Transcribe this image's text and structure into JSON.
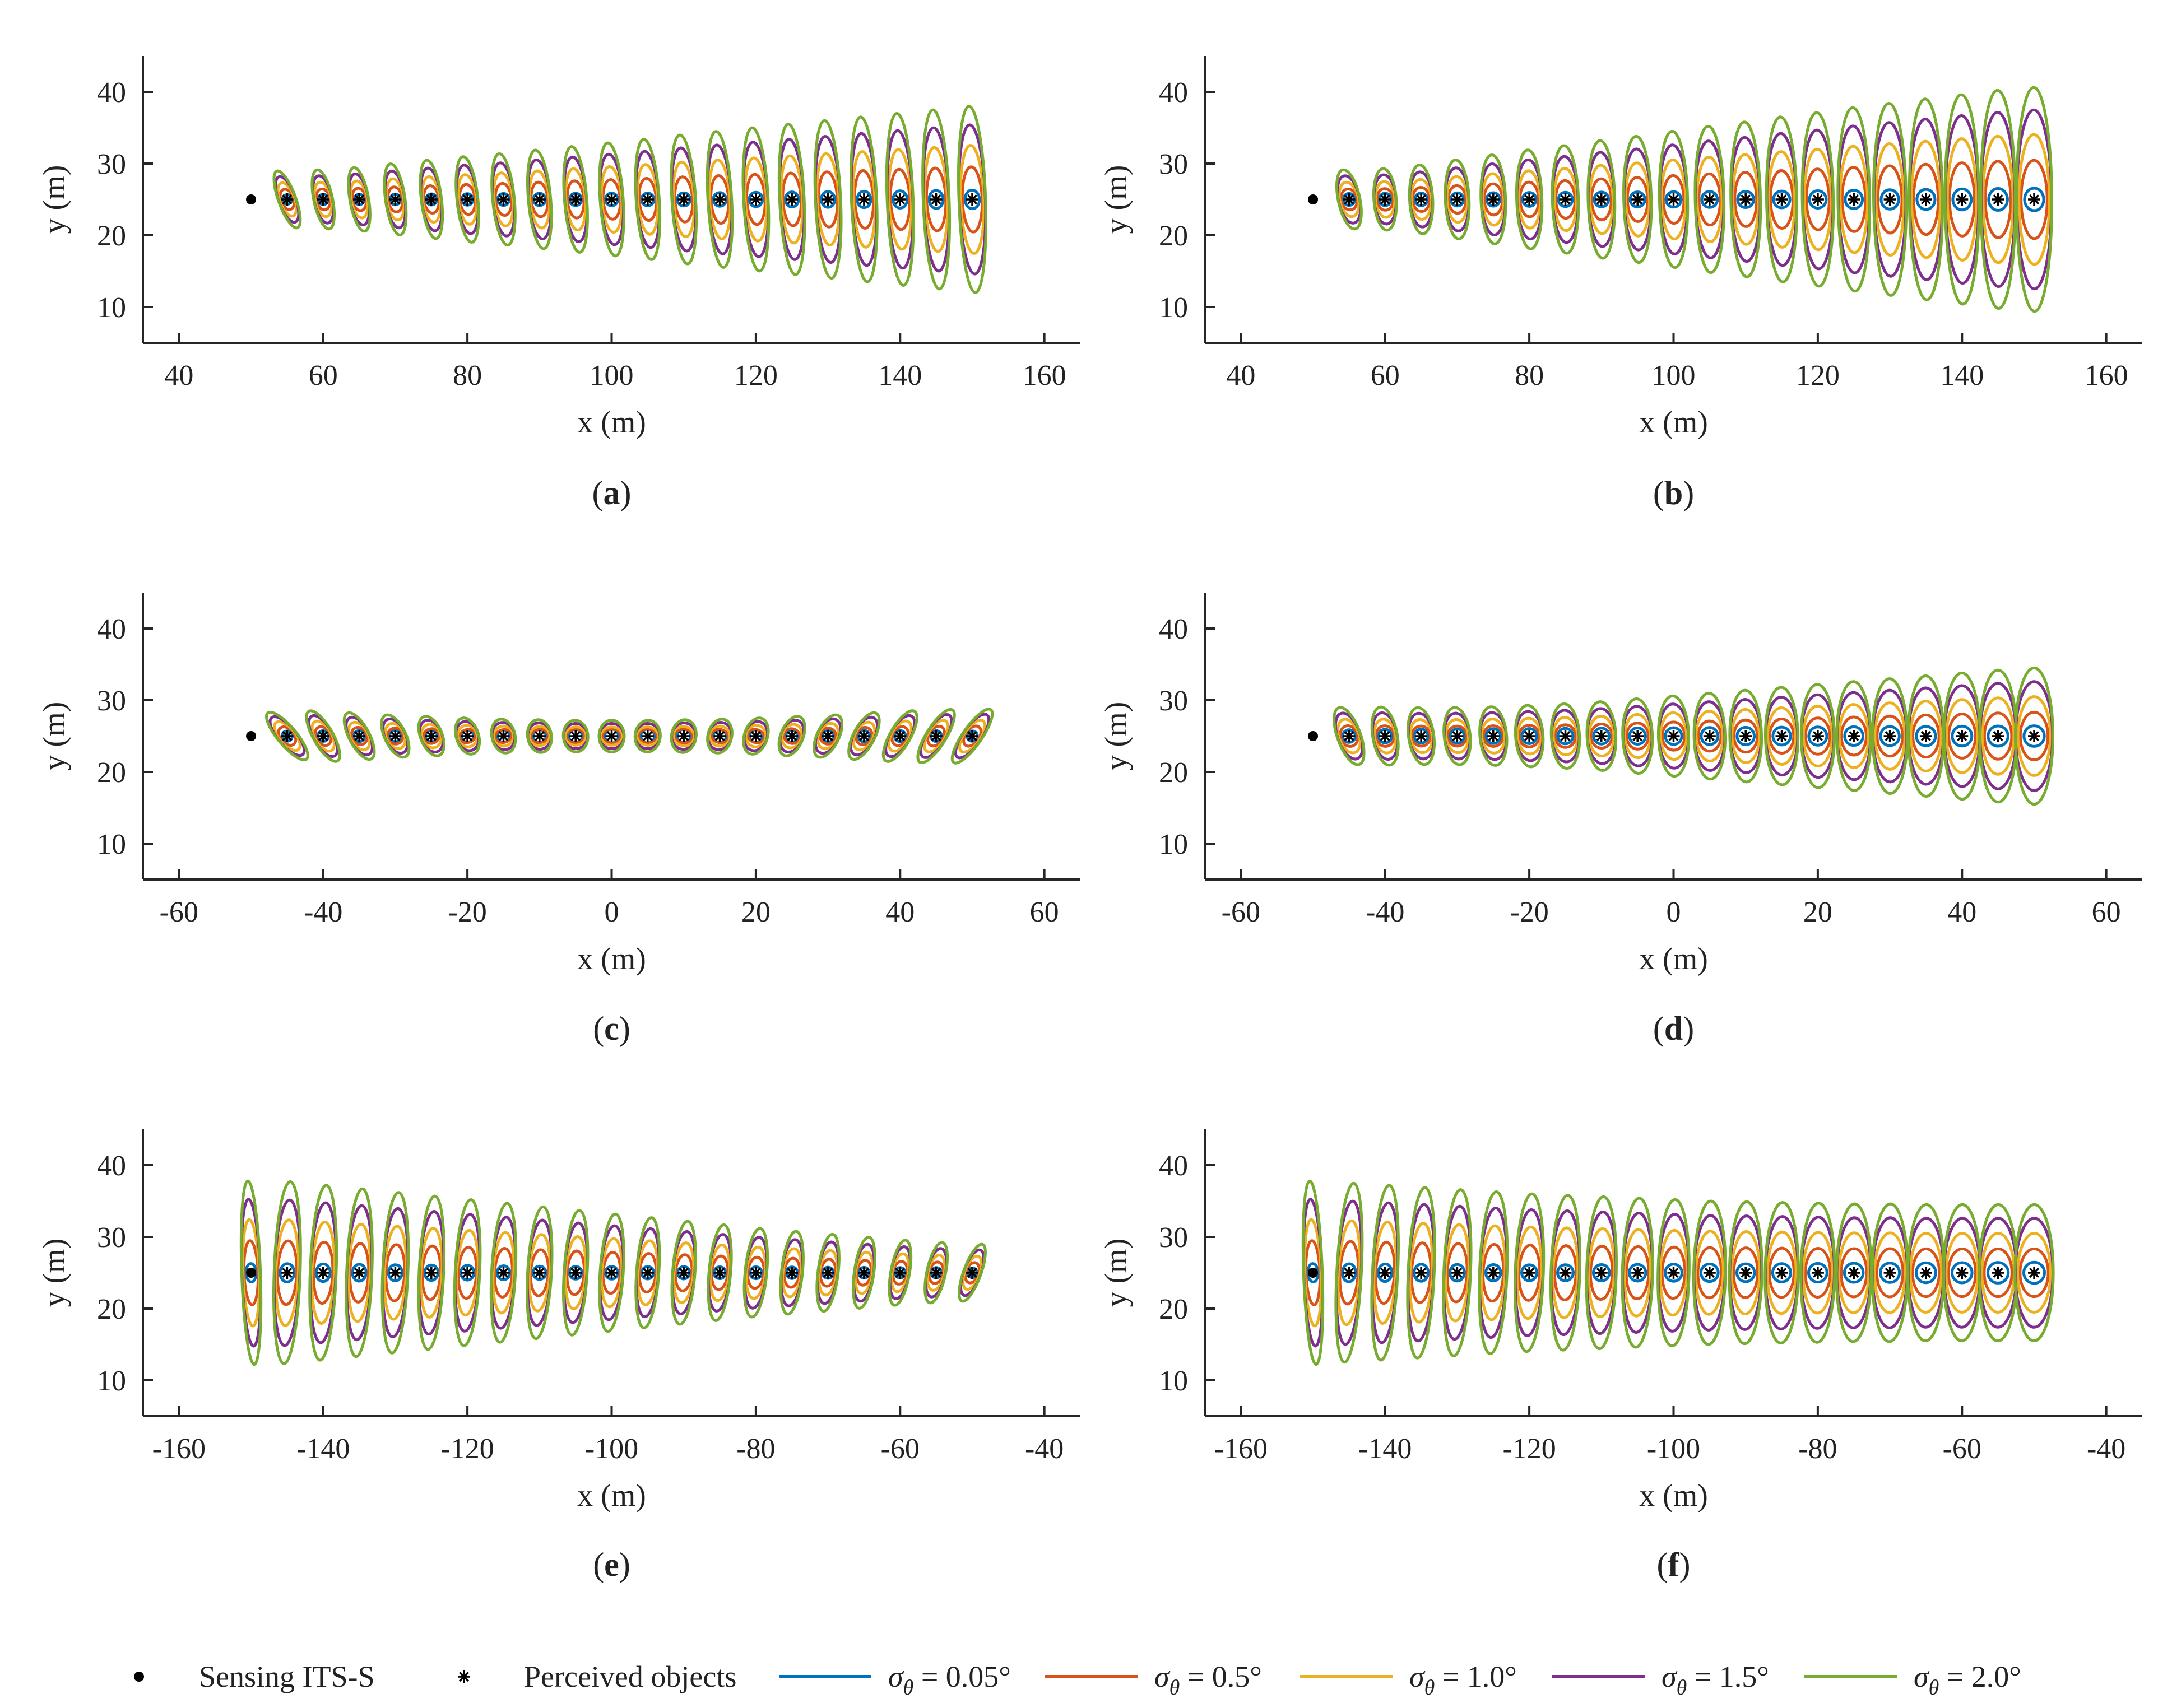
{
  "colors": {
    "sigma_0_05": "#0072BD",
    "sigma_0_5": "#D95319",
    "sigma_1_0": "#EDB120",
    "sigma_1_5": "#7E2F8E",
    "sigma_2_0": "#77AC30",
    "axis": "#262626",
    "marker": "#000000"
  },
  "legend": {
    "entries": [
      {
        "label": "Sensing ITS-S",
        "kind": "dot"
      },
      {
        "label": "Perceived objects",
        "kind": "star"
      },
      {
        "label": "σθ = 0.05°",
        "kind": "line",
        "color": "#0072BD"
      },
      {
        "label": "σθ = 0.5°",
        "kind": "line",
        "color": "#D95319"
      },
      {
        "label": "σθ = 1.0°",
        "kind": "line",
        "color": "#EDB120"
      },
      {
        "label": "σθ = 1.5°",
        "kind": "line",
        "color": "#7E2F8E"
      },
      {
        "label": "σθ = 2.0°",
        "kind": "line",
        "color": "#77AC30"
      }
    ]
  },
  "chart_data": [
    {
      "panel": "a",
      "caption_letter": "a",
      "type": "scatter",
      "xlabel": "x (m)",
      "ylabel": "y (m)",
      "xlim": [
        35,
        165
      ],
      "ylim": [
        5,
        45
      ],
      "xticks": [
        40,
        60,
        80,
        100,
        120,
        140,
        160
      ],
      "yticks": [
        10,
        20,
        30,
        40
      ],
      "sensor": [
        50,
        25
      ],
      "objects_x": [
        55,
        60,
        65,
        70,
        75,
        80,
        85,
        90,
        95,
        100,
        105,
        110,
        115,
        120,
        125,
        130,
        135,
        140,
        145,
        150
      ],
      "object_y": 25,
      "sigma_deg": [
        0.05,
        0.5,
        1.0,
        1.5,
        2.0
      ],
      "ellipse_semi_axes_sigma2_m": {
        "major": [
          4.2,
          4.2,
          4.5,
          5.0,
          5.5,
          6.0,
          6.4,
          6.9,
          7.4,
          7.9,
          8.4,
          9.0,
          9.5,
          10.0,
          10.5,
          11.0,
          11.5,
          12.0,
          12.5,
          13.0
        ],
        "minor": [
          1.2,
          1.3,
          1.3,
          1.35,
          1.4,
          1.45,
          1.5,
          1.55,
          1.55,
          1.6,
          1.6,
          1.65,
          1.65,
          1.7,
          1.7,
          1.75,
          1.75,
          1.8,
          1.8,
          1.85
        ],
        "tilt_deg": [
          -20,
          -12,
          -10,
          -8,
          -7,
          -6,
          -5.5,
          -5,
          -4.5,
          -4,
          -3.8,
          -3.5,
          -3.2,
          -3,
          -2.8,
          -2.6,
          -2.4,
          -2.2,
          -2.1,
          -2
        ]
      }
    },
    {
      "panel": "b",
      "caption_letter": "b",
      "type": "scatter",
      "xlabel": "x (m)",
      "ylabel": "y (m)",
      "xlim": [
        35,
        165
      ],
      "ylim": [
        5,
        45
      ],
      "xticks": [
        40,
        60,
        80,
        100,
        120,
        140,
        160
      ],
      "yticks": [
        10,
        20,
        30,
        40
      ],
      "sensor": [
        50,
        25
      ],
      "objects_x": [
        55,
        60,
        65,
        70,
        75,
        80,
        85,
        90,
        95,
        100,
        105,
        110,
        115,
        120,
        125,
        130,
        135,
        140,
        145,
        150
      ],
      "object_y": 25,
      "sigma_deg": [
        0.05,
        0.5,
        1.0,
        1.5,
        2.0
      ],
      "ellipse_semi_axes_sigma2_m": {
        "major": [
          4.2,
          4.3,
          4.8,
          5.5,
          6.2,
          6.9,
          7.5,
          8.2,
          8.8,
          9.5,
          10.2,
          10.8,
          11.5,
          12.1,
          12.8,
          13.4,
          14.0,
          14.6,
          15.2,
          15.6
        ],
        "minor": [
          1.5,
          1.55,
          1.6,
          1.65,
          1.7,
          1.75,
          1.8,
          1.85,
          1.9,
          1.95,
          2.0,
          2.05,
          2.1,
          2.15,
          2.2,
          2.25,
          2.3,
          2.35,
          2.4,
          2.45
        ],
        "tilt_deg": [
          -12,
          -4,
          -3,
          -2.5,
          -2,
          -1.8,
          -1.6,
          -1.4,
          -1.3,
          -1.2,
          -1.1,
          -1,
          -0.9,
          -0.8,
          -0.7,
          -0.6,
          -0.5,
          -0.4,
          -0.3,
          -0.2
        ]
      }
    },
    {
      "panel": "c",
      "caption_letter": "c",
      "type": "scatter",
      "xlabel": "x (m)",
      "ylabel": "y (m)",
      "xlim": [
        -65,
        65
      ],
      "ylim": [
        5,
        45
      ],
      "xticks": [
        -60,
        -40,
        -20,
        0,
        20,
        40,
        60
      ],
      "yticks": [
        10,
        20,
        30,
        40
      ],
      "sensor": [
        -50,
        25
      ],
      "objects_x": [
        -45,
        -40,
        -35,
        -30,
        -25,
        -20,
        -15,
        -10,
        -5,
        0,
        5,
        10,
        15,
        20,
        25,
        30,
        35,
        40,
        45,
        50
      ],
      "object_y": 25,
      "sigma_deg": [
        0.05,
        0.5,
        1.0,
        1.5,
        2.0
      ],
      "ellipse_semi_axes_sigma2_m": {
        "major": [
          4.2,
          4.0,
          3.6,
          3.2,
          2.9,
          2.6,
          2.4,
          2.3,
          2.2,
          2.2,
          2.2,
          2.3,
          2.4,
          2.6,
          2.9,
          3.2,
          3.6,
          4.0,
          4.3,
          4.5
        ],
        "minor": [
          1.3,
          1.35,
          1.4,
          1.45,
          1.5,
          1.55,
          1.6,
          1.65,
          1.7,
          1.75,
          1.75,
          1.7,
          1.65,
          1.6,
          1.55,
          1.5,
          1.45,
          1.4,
          1.35,
          1.3
        ],
        "tilt_deg": [
          -40,
          -30,
          -28,
          -26,
          -22,
          -18,
          -14,
          -10,
          -5,
          0,
          5,
          10,
          14,
          18,
          22,
          26,
          28,
          30,
          32,
          35
        ]
      }
    },
    {
      "panel": "d",
      "caption_letter": "d",
      "type": "scatter",
      "xlabel": "x (m)",
      "ylabel": "y (m)",
      "xlim": [
        -65,
        65
      ],
      "ylim": [
        5,
        45
      ],
      "xticks": [
        -60,
        -40,
        -20,
        0,
        20,
        40,
        60
      ],
      "yticks": [
        10,
        20,
        30,
        40
      ],
      "sensor": [
        -50,
        25
      ],
      "objects_x": [
        -45,
        -40,
        -35,
        -30,
        -25,
        -20,
        -15,
        -10,
        -5,
        0,
        5,
        10,
        15,
        20,
        25,
        30,
        35,
        40,
        45,
        50
      ],
      "object_y": 25,
      "sigma_deg": [
        0.05,
        0.5,
        1.0,
        1.5,
        2.0
      ],
      "ellipse_semi_axes_sigma2_m": {
        "major": [
          4.2,
          4.1,
          4.0,
          4.0,
          4.1,
          4.3,
          4.5,
          4.8,
          5.2,
          5.6,
          6.0,
          6.4,
          6.8,
          7.2,
          7.6,
          8.0,
          8.4,
          8.8,
          9.2,
          9.5
        ],
        "minor": [
          1.6,
          1.7,
          1.75,
          1.8,
          1.85,
          1.9,
          1.95,
          2.0,
          2.05,
          2.1,
          2.15,
          2.2,
          2.25,
          2.3,
          2.35,
          2.4,
          2.45,
          2.5,
          2.55,
          2.6
        ],
        "tilt_deg": [
          -20,
          -10,
          -8,
          -6,
          -5,
          -4,
          -3,
          -2.5,
          -2,
          -1.5,
          -1.2,
          -1,
          -0.8,
          -0.6,
          -0.5,
          -0.4,
          -0.3,
          -0.2,
          -0.1,
          0
        ]
      }
    },
    {
      "panel": "e",
      "caption_letter": "e",
      "type": "scatter",
      "xlabel": "x (m)",
      "ylabel": "y (m)",
      "xlim": [
        -165,
        -35
      ],
      "ylim": [
        5,
        45
      ],
      "xticks": [
        -160,
        -140,
        -120,
        -100,
        -80,
        -60,
        -40
      ],
      "yticks": [
        10,
        20,
        30,
        40
      ],
      "sensor": [
        -150,
        25
      ],
      "objects_x": [
        -145,
        -140,
        -135,
        -130,
        -125,
        -120,
        -115,
        -110,
        -105,
        -100,
        -95,
        -90,
        -85,
        -80,
        -75,
        -70,
        -65,
        -60,
        -55,
        -50
      ],
      "object_y": 25,
      "sigma_deg": [
        0.05,
        0.5,
        1.0,
        1.5,
        2.0
      ],
      "ellipse_semi_axes_sigma2_m": {
        "major": [
          12.7,
          12.2,
          11.7,
          11.2,
          10.7,
          10.2,
          9.7,
          9.2,
          8.7,
          8.2,
          7.7,
          7.2,
          6.7,
          6.2,
          5.8,
          5.4,
          5.0,
          4.6,
          4.3,
          4.2
        ],
        "minor": [
          1.8,
          1.8,
          1.75,
          1.75,
          1.7,
          1.7,
          1.65,
          1.65,
          1.6,
          1.6,
          1.55,
          1.55,
          1.5,
          1.5,
          1.45,
          1.4,
          1.35,
          1.3,
          1.3,
          1.2
        ],
        "tilt_deg": [
          2,
          2.1,
          2.2,
          2.4,
          2.6,
          2.8,
          3,
          3.2,
          3.5,
          3.8,
          4,
          4.5,
          5,
          5.5,
          6,
          7,
          8,
          10,
          12,
          20
        ]
      },
      "sensor_ellipse_sigma2_m": {
        "major": 12.8,
        "minor": 1.3,
        "tilt_deg": -2
      }
    },
    {
      "panel": "f",
      "caption_letter": "f",
      "type": "scatter",
      "xlabel": "x (m)",
      "ylabel": "y (m)",
      "xlim": [
        -165,
        -35
      ],
      "ylim": [
        5,
        45
      ],
      "xticks": [
        -160,
        -140,
        -120,
        -100,
        -80,
        -60,
        -40
      ],
      "yticks": [
        10,
        20,
        30,
        40
      ],
      "sensor": [
        -150,
        25
      ],
      "objects_x": [
        -145,
        -140,
        -135,
        -130,
        -125,
        -120,
        -115,
        -110,
        -105,
        -100,
        -95,
        -90,
        -85,
        -80,
        -75,
        -70,
        -65,
        -60,
        -55,
        -50
      ],
      "object_y": 25,
      "sigma_deg": [
        0.05,
        0.5,
        1.0,
        1.5,
        2.0
      ],
      "ellipse_semi_axes_sigma2_m": {
        "major": [
          12.5,
          12.2,
          11.9,
          11.6,
          11.3,
          11.0,
          10.8,
          10.6,
          10.4,
          10.2,
          10.0,
          9.9,
          9.8,
          9.7,
          9.6,
          9.6,
          9.5,
          9.5,
          9.5,
          9.5
        ],
        "minor": [
          1.7,
          1.75,
          1.8,
          1.85,
          1.9,
          1.95,
          2.0,
          2.05,
          2.1,
          2.15,
          2.2,
          2.25,
          2.3,
          2.35,
          2.4,
          2.45,
          2.5,
          2.55,
          2.6,
          2.65
        ],
        "tilt_deg": [
          3,
          2.8,
          2.6,
          2.4,
          2.2,
          2,
          1.8,
          1.6,
          1.4,
          1.2,
          1,
          0.9,
          0.8,
          0.7,
          0.6,
          0.5,
          0.4,
          0.3,
          0.2,
          0.1
        ]
      },
      "sensor_ellipse_sigma2_m": {
        "major": 12.8,
        "minor": 1.3,
        "tilt_deg": -2
      }
    }
  ]
}
